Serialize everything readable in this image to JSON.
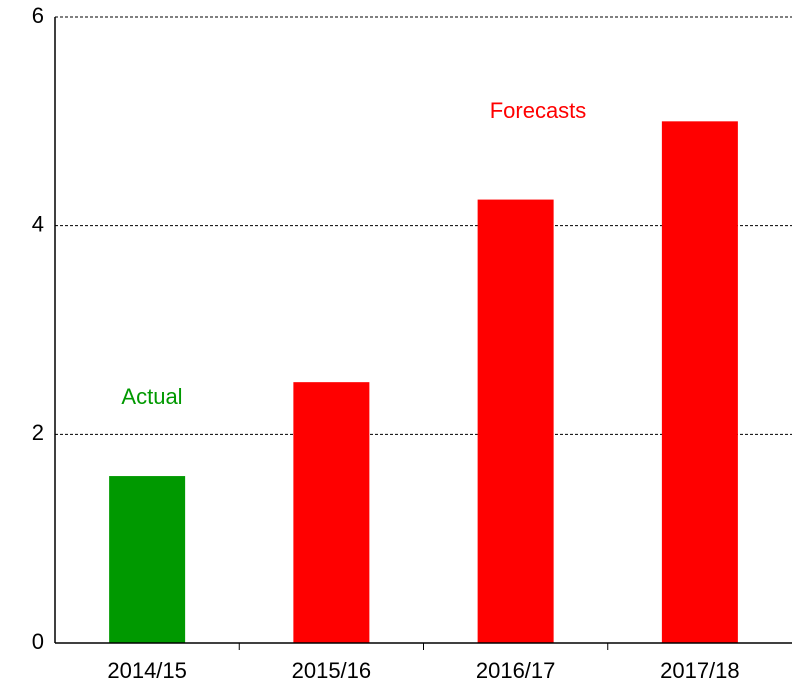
{
  "chart_data": {
    "type": "bar",
    "categories": [
      "2014/15",
      "2015/16",
      "2016/17",
      "2017/18"
    ],
    "values": [
      1.6,
      2.5,
      4.25,
      5.0
    ],
    "colors": [
      "#009900",
      "#ff0000",
      "#ff0000",
      "#ff0000"
    ],
    "ylim": [
      0,
      6
    ],
    "yticks": [
      0,
      2,
      4,
      6
    ],
    "grid": true,
    "annotations": [
      {
        "text": "Actual",
        "color": "#009900"
      },
      {
        "text": "Forecasts",
        "color": "#ff0000"
      }
    ]
  }
}
